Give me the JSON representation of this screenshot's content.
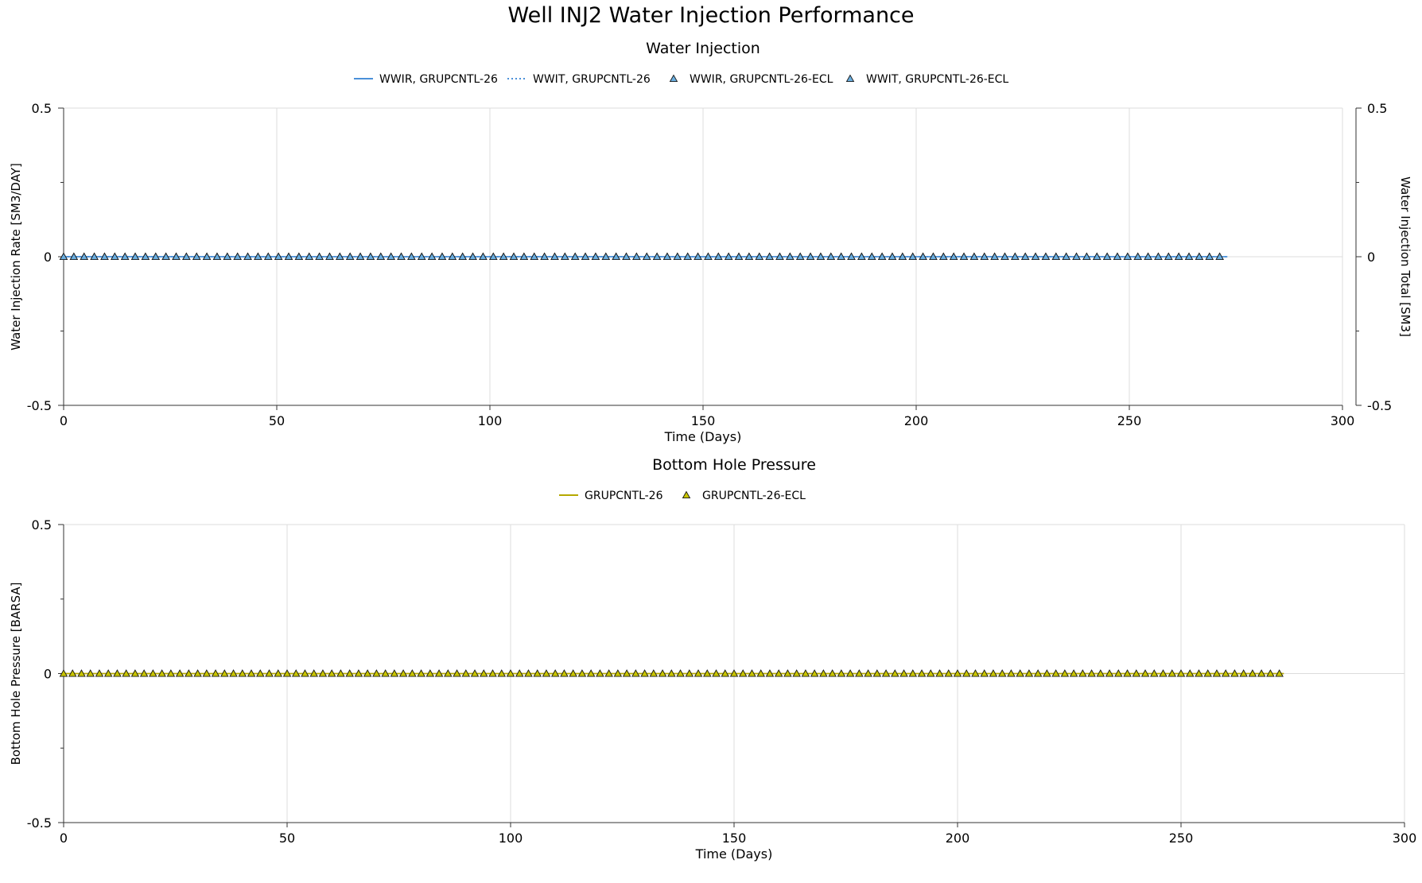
{
  "title": "Well INJ2 Water Injection Performance",
  "chart_data": [
    {
      "type": "line",
      "title": "Water Injection",
      "xlabel": "Time (Days)",
      "ylabel": "Water Injection Rate [SM3/DAY]",
      "y2label": "Water Injection Total [SM3]",
      "xlim": [
        0,
        300
      ],
      "ylim": [
        -0.5,
        0.5
      ],
      "y2lim": [
        -0.5,
        0.5
      ],
      "xticks": [
        "0",
        "50",
        "100",
        "150",
        "200",
        "250",
        "300"
      ],
      "yticks": [
        "0.5",
        "0",
        "-0.5"
      ],
      "y2ticks": [
        "0.5",
        "0",
        "-0.5"
      ],
      "grid": true,
      "legend_position": "top",
      "x_range": [
        0,
        273
      ],
      "series": [
        {
          "name": "WWIR, GRUPCNTL-26",
          "style": "solid",
          "color": "#4a90d9",
          "axis": "left",
          "values": [
            0,
            0
          ]
        },
        {
          "name": "WWIT, GRUPCNTL-26",
          "style": "dotted",
          "color": "#4a90d9",
          "axis": "right",
          "values": [
            0,
            0
          ]
        },
        {
          "name": "WWIR, GRUPCNTL-26-ECL",
          "style": "triangle",
          "color": "#6aaee0",
          "axis": "left",
          "marker_step_days": 2.4,
          "values": [
            0
          ]
        },
        {
          "name": "WWIT, GRUPCNTL-26-ECL",
          "style": "triangle",
          "color": "#6aaee0",
          "axis": "right",
          "marker_step_days": 2.4,
          "values": [
            0
          ]
        }
      ]
    },
    {
      "type": "line",
      "title": "Bottom Hole Pressure",
      "xlabel": "Time (Days)",
      "ylabel": "Bottom Hole Pressure [BARSA]",
      "xlim": [
        0,
        300
      ],
      "ylim": [
        -0.5,
        0.5
      ],
      "xticks": [
        "0",
        "50",
        "100",
        "150",
        "200",
        "250",
        "300"
      ],
      "yticks": [
        "0.5",
        "0",
        "-0.5"
      ],
      "grid": true,
      "legend_position": "top",
      "x_range": [
        0,
        273
      ],
      "series": [
        {
          "name": "GRUPCNTL-26",
          "style": "solid",
          "color": "#b5a800",
          "axis": "left",
          "values": [
            0,
            0
          ]
        },
        {
          "name": "GRUPCNTL-26-ECL",
          "style": "triangle",
          "color": "#c8c400",
          "axis": "left",
          "marker_step_days": 2.0,
          "values": [
            0
          ]
        }
      ]
    }
  ]
}
